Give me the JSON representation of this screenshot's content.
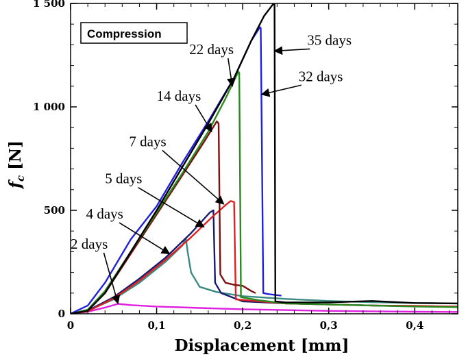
{
  "chart_data": {
    "type": "line",
    "title": "",
    "xlabel": "Displacement [mm]",
    "ylabel_main": "f",
    "ylabel_sub": "c",
    "ylabel_unit": " [N]",
    "xlim": [
      0,
      0.45
    ],
    "ylim": [
      0,
      1500
    ],
    "xticks": [
      0,
      0.1,
      0.2,
      0.3,
      0.4
    ],
    "xtick_labels": [
      "0",
      "0,1",
      "0,2",
      "0,3",
      "0,4"
    ],
    "yticks": [
      0,
      500,
      1000,
      1500
    ],
    "ytick_labels": [
      "0",
      "500",
      "1 000",
      "1 500"
    ],
    "grid": false,
    "legend_box": "Compression",
    "series": [
      {
        "name": "2 days",
        "color": "#e020e0",
        "points": [
          [
            0,
            0
          ],
          [
            0.02,
            10
          ],
          [
            0.04,
            30
          ],
          [
            0.055,
            48
          ],
          [
            0.07,
            42
          ],
          [
            0.1,
            35
          ],
          [
            0.15,
            28
          ],
          [
            0.2,
            22
          ],
          [
            0.25,
            18
          ],
          [
            0.3,
            14
          ],
          [
            0.35,
            12
          ],
          [
            0.4,
            10
          ],
          [
            0.45,
            9
          ]
        ]
      },
      {
        "name": "4 days",
        "color": "#3a8a80",
        "points": [
          [
            0,
            0
          ],
          [
            0.02,
            15
          ],
          [
            0.05,
            70
          ],
          [
            0.08,
            150
          ],
          [
            0.11,
            250
          ],
          [
            0.13,
            330
          ],
          [
            0.134,
            365
          ],
          [
            0.136,
            300
          ],
          [
            0.14,
            200
          ],
          [
            0.15,
            130
          ],
          [
            0.17,
            105
          ],
          [
            0.2,
            85
          ],
          [
            0.25,
            72
          ],
          [
            0.3,
            62
          ],
          [
            0.35,
            56
          ],
          [
            0.4,
            52
          ],
          [
            0.45,
            50
          ]
        ]
      },
      {
        "name": "5 days",
        "color": "#1a1a70",
        "points": [
          [
            0,
            0
          ],
          [
            0.02,
            15
          ],
          [
            0.05,
            80
          ],
          [
            0.08,
            170
          ],
          [
            0.11,
            270
          ],
          [
            0.14,
            390
          ],
          [
            0.162,
            490
          ],
          [
            0.166,
            500
          ],
          [
            0.168,
            150
          ],
          [
            0.175,
            100
          ],
          [
            0.2,
            60
          ],
          [
            0.25,
            50
          ],
          [
            0.3,
            45
          ],
          [
            0.35,
            40
          ],
          [
            0.4,
            36
          ],
          [
            0.45,
            35
          ]
        ]
      },
      {
        "name": "7 days",
        "color": "#dd2020",
        "points": [
          [
            0,
            0
          ],
          [
            0.02,
            12
          ],
          [
            0.05,
            75
          ],
          [
            0.08,
            160
          ],
          [
            0.11,
            260
          ],
          [
            0.14,
            370
          ],
          [
            0.165,
            470
          ],
          [
            0.18,
            525
          ],
          [
            0.186,
            545
          ],
          [
            0.19,
            540
          ],
          [
            0.192,
            70
          ],
          [
            0.22,
            60
          ],
          [
            0.25,
            50
          ],
          [
            0.3,
            45
          ],
          [
            0.35,
            40
          ],
          [
            0.4,
            38
          ],
          [
            0.45,
            35
          ]
        ]
      },
      {
        "name": "14 days",
        "color": "#7a1010",
        "points": [
          [
            0,
            0
          ],
          [
            0.02,
            18
          ],
          [
            0.04,
            100
          ],
          [
            0.07,
            290
          ],
          [
            0.1,
            480
          ],
          [
            0.13,
            670
          ],
          [
            0.155,
            830
          ],
          [
            0.17,
            930
          ],
          [
            0.172,
            920
          ],
          [
            0.174,
            190
          ],
          [
            0.18,
            150
          ],
          [
            0.19,
            140
          ],
          [
            0.2,
            135
          ],
          [
            0.21,
            110
          ],
          [
            0.215,
            100
          ]
        ]
      },
      {
        "name": "22 days",
        "color": "#2a8a20",
        "points": [
          [
            0,
            0
          ],
          [
            0.02,
            20
          ],
          [
            0.04,
            110
          ],
          [
            0.07,
            300
          ],
          [
            0.1,
            490
          ],
          [
            0.13,
            680
          ],
          [
            0.16,
            880
          ],
          [
            0.18,
            1040
          ],
          [
            0.195,
            1170
          ],
          [
            0.196,
            1165
          ],
          [
            0.198,
            80
          ],
          [
            0.22,
            65
          ],
          [
            0.25,
            50
          ],
          [
            0.3,
            45
          ],
          [
            0.35,
            40
          ],
          [
            0.4,
            35
          ],
          [
            0.45,
            32
          ]
        ]
      },
      {
        "name": "32 days",
        "color": "#2020dd",
        "points": [
          [
            0,
            0
          ],
          [
            0.02,
            40
          ],
          [
            0.04,
            150
          ],
          [
            0.07,
            360
          ],
          [
            0.1,
            520
          ],
          [
            0.13,
            730
          ],
          [
            0.16,
            930
          ],
          [
            0.19,
            1140
          ],
          [
            0.21,
            1320
          ],
          [
            0.22,
            1385
          ],
          [
            0.221,
            1380
          ],
          [
            0.224,
            100
          ],
          [
            0.23,
            95
          ],
          [
            0.24,
            90
          ],
          [
            0.245,
            88
          ]
        ]
      },
      {
        "name": "35 days",
        "color": "#000000",
        "points": [
          [
            0,
            0
          ],
          [
            0.02,
            15
          ],
          [
            0.04,
            100
          ],
          [
            0.07,
            300
          ],
          [
            0.1,
            500
          ],
          [
            0.13,
            710
          ],
          [
            0.16,
            920
          ],
          [
            0.19,
            1140
          ],
          [
            0.21,
            1320
          ],
          [
            0.225,
            1440
          ],
          [
            0.236,
            1500
          ],
          [
            0.237,
            1495
          ],
          [
            0.238,
            60
          ],
          [
            0.25,
            55
          ],
          [
            0.3,
            55
          ],
          [
            0.35,
            62
          ],
          [
            0.4,
            52
          ],
          [
            0.45,
            50
          ]
        ]
      }
    ],
    "annotations": [
      {
        "text": "2 days",
        "tx": 0.0,
        "ty": 315,
        "ax": 0.055,
        "ay": 50
      },
      {
        "text": "4 days",
        "tx": 0.018,
        "ty": 460,
        "ax": 0.115,
        "ay": 290
      },
      {
        "text": "5 days",
        "tx": 0.04,
        "ty": 630,
        "ax": 0.155,
        "ay": 420
      },
      {
        "text": "7 days",
        "tx": 0.068,
        "ty": 810,
        "ax": 0.178,
        "ay": 530
      },
      {
        "text": "14 days",
        "tx": 0.1,
        "ty": 1030,
        "ax": 0.164,
        "ay": 880
      },
      {
        "text": "22 days",
        "tx": 0.138,
        "ty": 1255,
        "ax": 0.188,
        "ay": 1100
      },
      {
        "text": "32 days",
        "tx": 0.265,
        "ty": 1125,
        "ax": 0.222,
        "ay": 1060
      },
      {
        "text": "35 days",
        "tx": 0.275,
        "ty": 1300,
        "ax": 0.237,
        "ay": 1270
      }
    ]
  }
}
